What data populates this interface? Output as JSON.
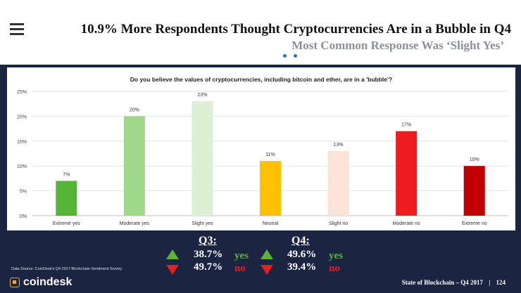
{
  "header": {
    "title": "10.9% More Respondents Thought Cryptocurrencies Are in a Bubble in Q4",
    "subtitle": "Most Common Response Was ‘Slight Yes’"
  },
  "chart_data": {
    "type": "bar",
    "title": "Do you believe the values of cryptocurrencies, including bitcoin and ether, are in a 'bubble'?",
    "categories": [
      "Extreme yes",
      "Moderate yes",
      "Slight yes",
      "Neutral",
      "Slight no",
      "Moderate no",
      "Extreme no"
    ],
    "values": [
      7,
      20,
      23,
      11,
      13,
      17,
      10
    ],
    "data_labels": [
      "7%",
      "20%",
      "23%",
      "11%",
      "13%",
      "17%",
      "10%"
    ],
    "colors": [
      "#54b435",
      "#9ed888",
      "#dcf0d3",
      "#ffc000",
      "#fde3d6",
      "#ee1c1c",
      "#c00000"
    ],
    "yticks": [
      "0%",
      "5%",
      "10%",
      "15%",
      "20%",
      "25%"
    ],
    "ytick_values": [
      0,
      5,
      10,
      15,
      20,
      25
    ],
    "ylim": [
      0,
      25
    ],
    "xlabel": "",
    "ylabel": "",
    "grid": true
  },
  "comparison": {
    "q3": {
      "label": "Q3:",
      "yes_value": "38.7%",
      "no_value": "49.7%"
    },
    "q4": {
      "label": "Q4:",
      "yes_value": "49.6%",
      "no_value": "39.4%"
    },
    "yes_label": "yes",
    "no_label": "no",
    "yes_color": "#5cb531",
    "no_color": "#e81e1e"
  },
  "footer": {
    "source": "Data Source: CoinDesk's Q4 2017 Blockchain Sentiment Survey",
    "logo_text": "coindesk",
    "report": "State of Blockchain – Q4 2017",
    "page_number": "124"
  }
}
